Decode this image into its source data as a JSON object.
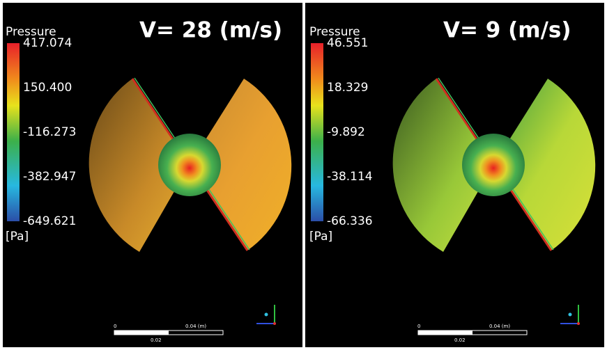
{
  "panels": [
    {
      "title": "V= 28 (m/s)",
      "legend": {
        "title": "Pressure",
        "ticks": [
          "417.074",
          "150.400",
          "-116.273",
          "-382.947",
          "-649.621"
        ],
        "unit": "[Pa]"
      },
      "scale": {
        "start": "0",
        "end": "0.04 (m)",
        "mid": "0.02"
      }
    },
    {
      "title": "V= 9 (m/s)",
      "legend": {
        "title": "Pressure",
        "ticks": [
          "46.551",
          "18.329",
          "-9.892",
          "-38.114",
          "-66.336"
        ],
        "unit": "[Pa]"
      },
      "scale": {
        "start": "0",
        "end": "0.04 (m)",
        "mid": "0.02"
      }
    }
  ]
}
